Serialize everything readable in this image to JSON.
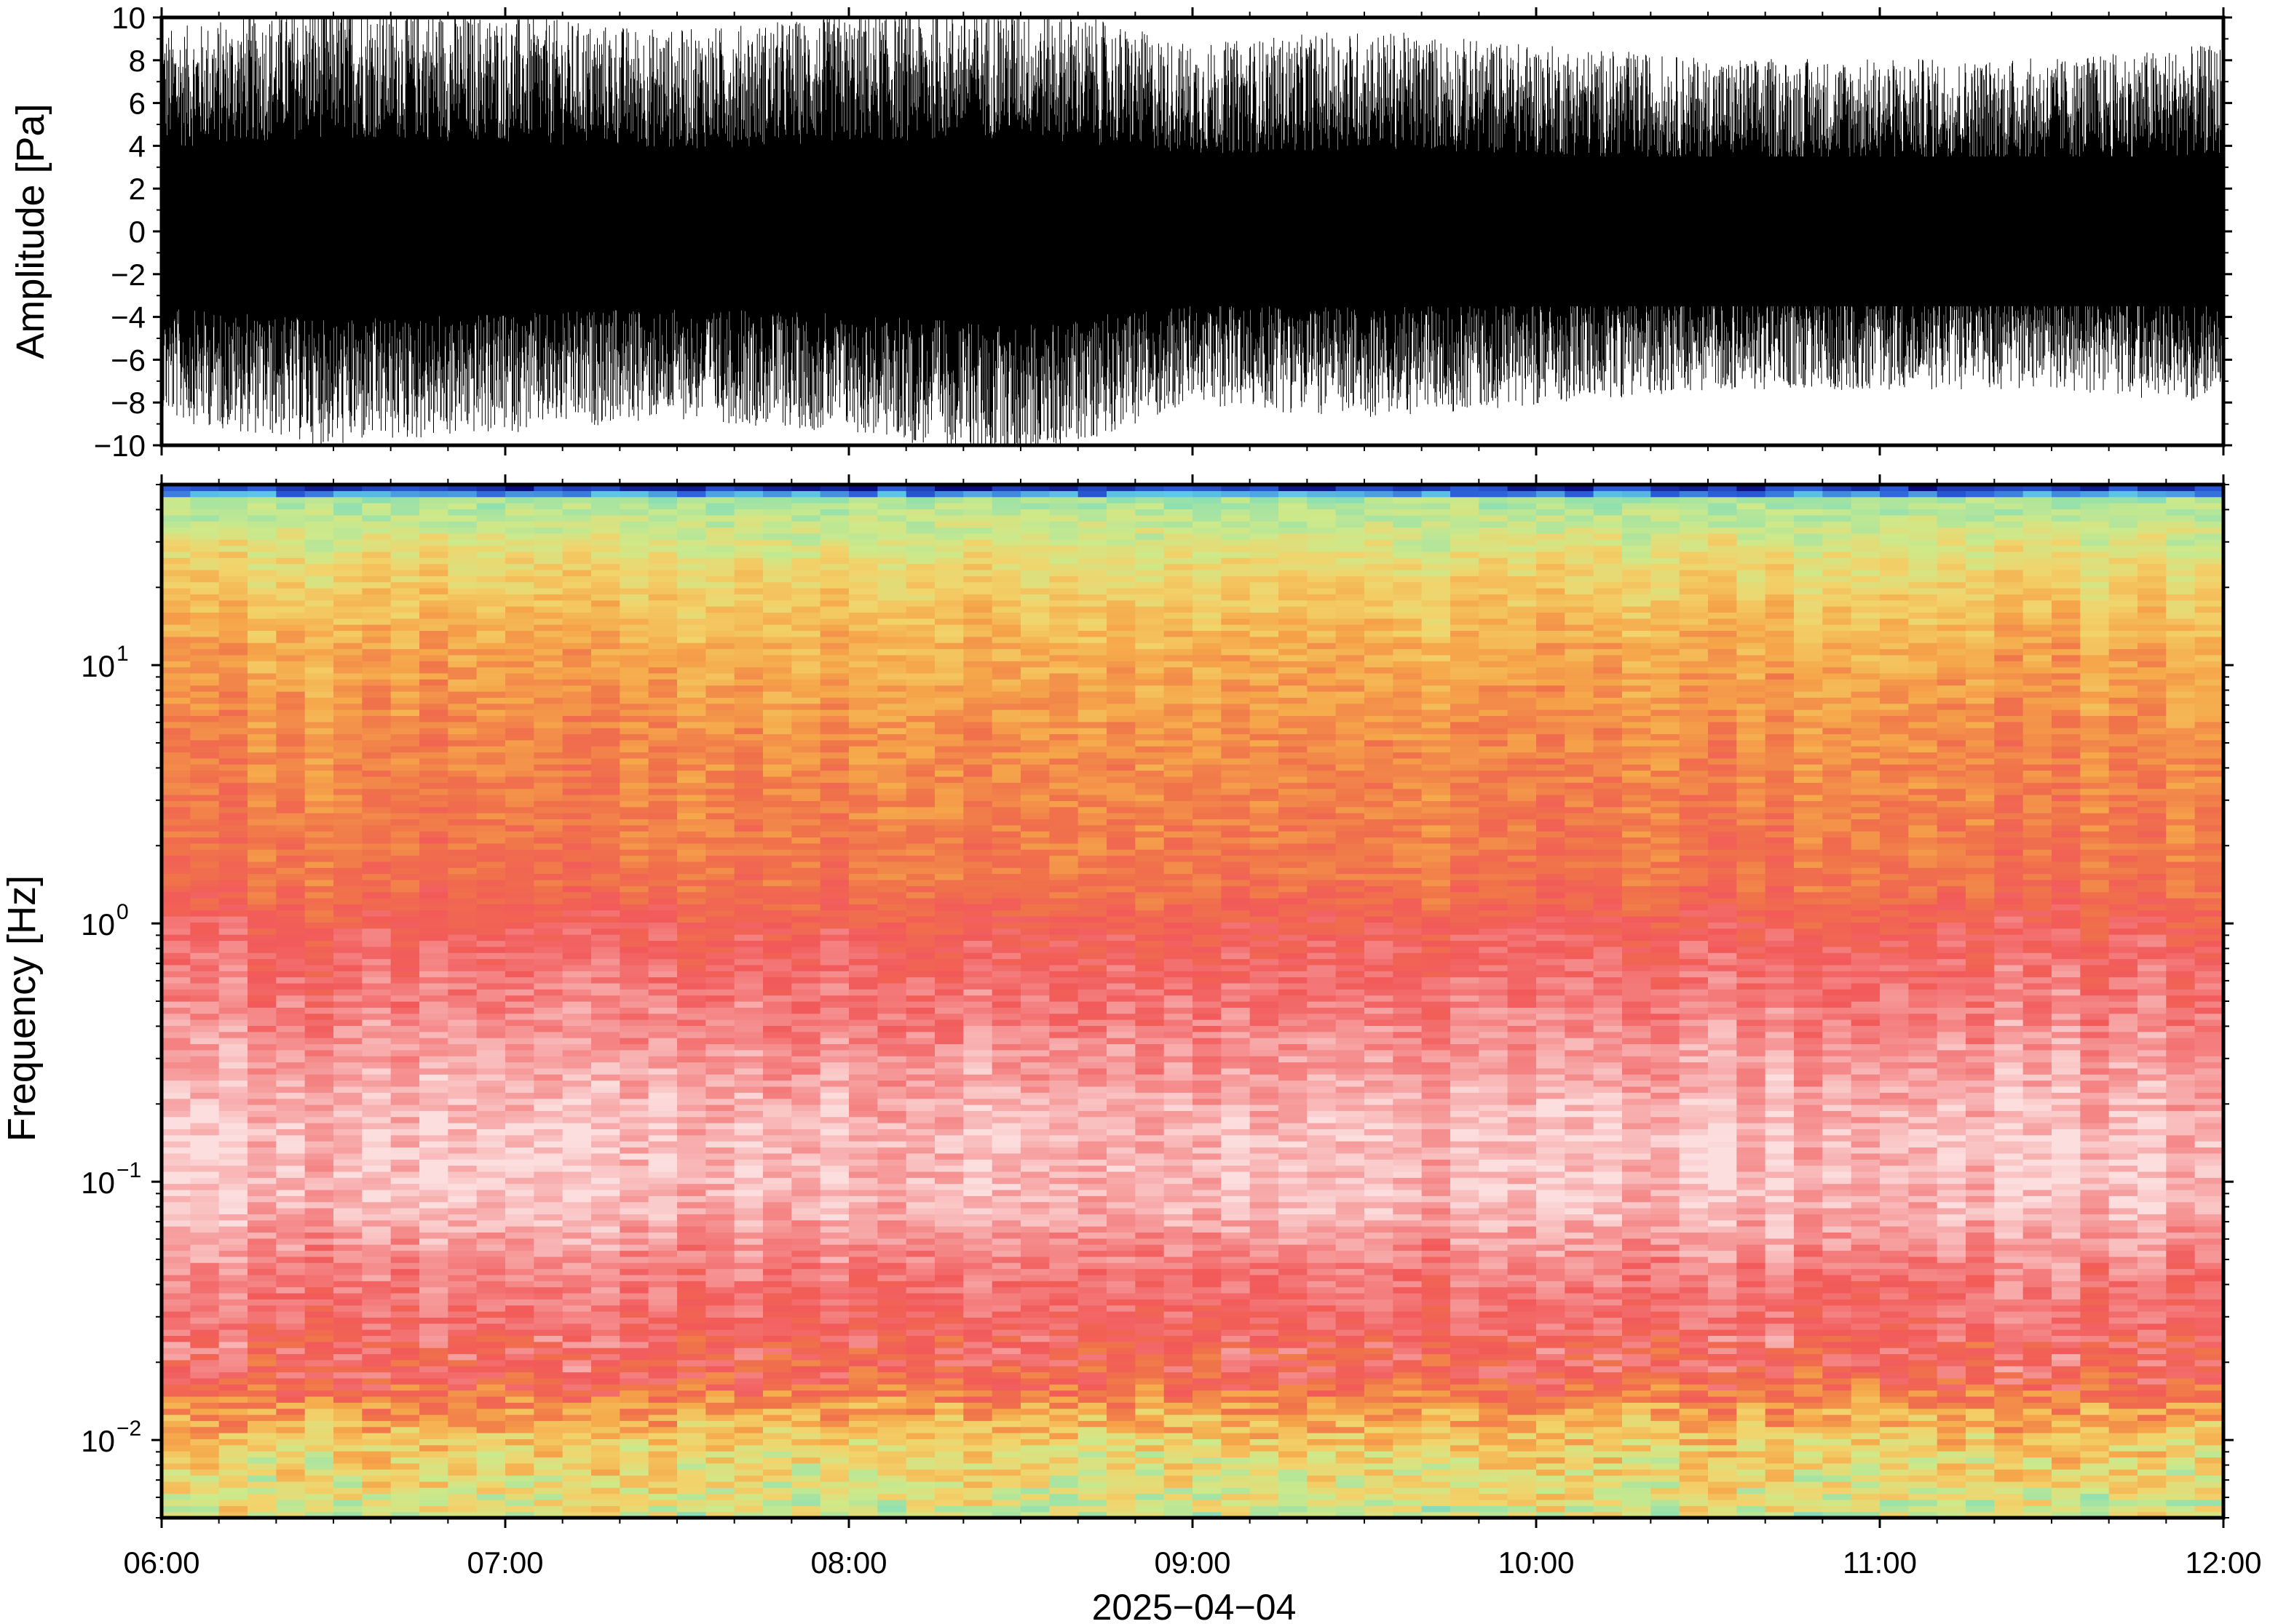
{
  "chart_data": [
    {
      "type": "line",
      "panel": "waveform",
      "ylabel": "Amplitude [Pa]",
      "xlabel": "",
      "ylim": [
        -10,
        10
      ],
      "yticks": [
        10,
        8,
        6,
        4,
        2,
        0,
        -2,
        -4,
        -6,
        -8,
        -10
      ],
      "ytick_labels": [
        "10",
        "8",
        "6",
        "4",
        "2",
        "0",
        "−2",
        "−4",
        "−6",
        "−8",
        "−10"
      ],
      "series": [
        {
          "color": "#000000",
          "x": [
            "06:00",
            "06:30",
            "07:00",
            "07:30",
            "08:00",
            "08:30",
            "09:00",
            "09:30",
            "10:00",
            "10:30",
            "11:00",
            "11:30",
            "12:00"
          ],
          "upper_envelope": [
            7.0,
            8.0,
            7.5,
            7.0,
            7.5,
            8.0,
            6.5,
            7.0,
            6.5,
            6.0,
            6.0,
            6.0,
            6.5
          ],
          "lower_envelope": [
            -6.5,
            -7.5,
            -7.0,
            -6.5,
            -7.0,
            -8.0,
            -6.0,
            -6.5,
            -6.0,
            -5.5,
            -5.5,
            -5.5,
            -6.0
          ],
          "dense_band": [
            -3.5,
            3.5
          ]
        }
      ],
      "grid": false
    },
    {
      "type": "heatmap",
      "panel": "spectrogram",
      "ylabel": "Frequency [Hz]",
      "xlabel": "2025−04−04",
      "y_scale": "log",
      "ylim": [
        0.005,
        50
      ],
      "yticks": [
        10,
        1,
        0.1,
        0.01
      ],
      "ytick_labels": [
        {
          "base": "10",
          "exp": "1"
        },
        {
          "base": "10",
          "exp": "0"
        },
        {
          "base": "10",
          "exp": "−1"
        },
        {
          "base": "10",
          "exp": "−2"
        }
      ],
      "x_categories": [
        "06:00",
        "07:00",
        "08:00",
        "09:00",
        "10:00",
        "11:00",
        "12:00"
      ],
      "colormap": [
        "#0a0a7a",
        "#2a5bd7",
        "#5ec8e6",
        "#8fe0b0",
        "#cde98a",
        "#f2d36b",
        "#f6a84a",
        "#f0734a",
        "#f25a5a",
        "#f69898",
        "#fcdede"
      ],
      "bands": [
        {
          "f_low": 46,
          "f_high": 50,
          "level": "deep-blue"
        },
        {
          "f_low": 30,
          "f_high": 46,
          "level": "cyan-green"
        },
        {
          "f_low": 12,
          "f_high": 30,
          "level": "yellow-green"
        },
        {
          "f_low": 1.3,
          "f_high": 12,
          "level": "orange"
        },
        {
          "f_low": 0.4,
          "f_high": 1.3,
          "level": "red"
        },
        {
          "f_low": 0.045,
          "f_high": 0.4,
          "level": "pink"
        },
        {
          "f_low": 0.016,
          "f_high": 0.045,
          "level": "red"
        },
        {
          "f_low": 0.005,
          "f_high": 0.016,
          "level": "yellow-green"
        }
      ],
      "grid": false
    }
  ],
  "x_axis": {
    "labels": [
      "06:00",
      "07:00",
      "08:00",
      "09:00",
      "10:00",
      "11:00",
      "12:00"
    ],
    "date": "2025−04−04"
  }
}
